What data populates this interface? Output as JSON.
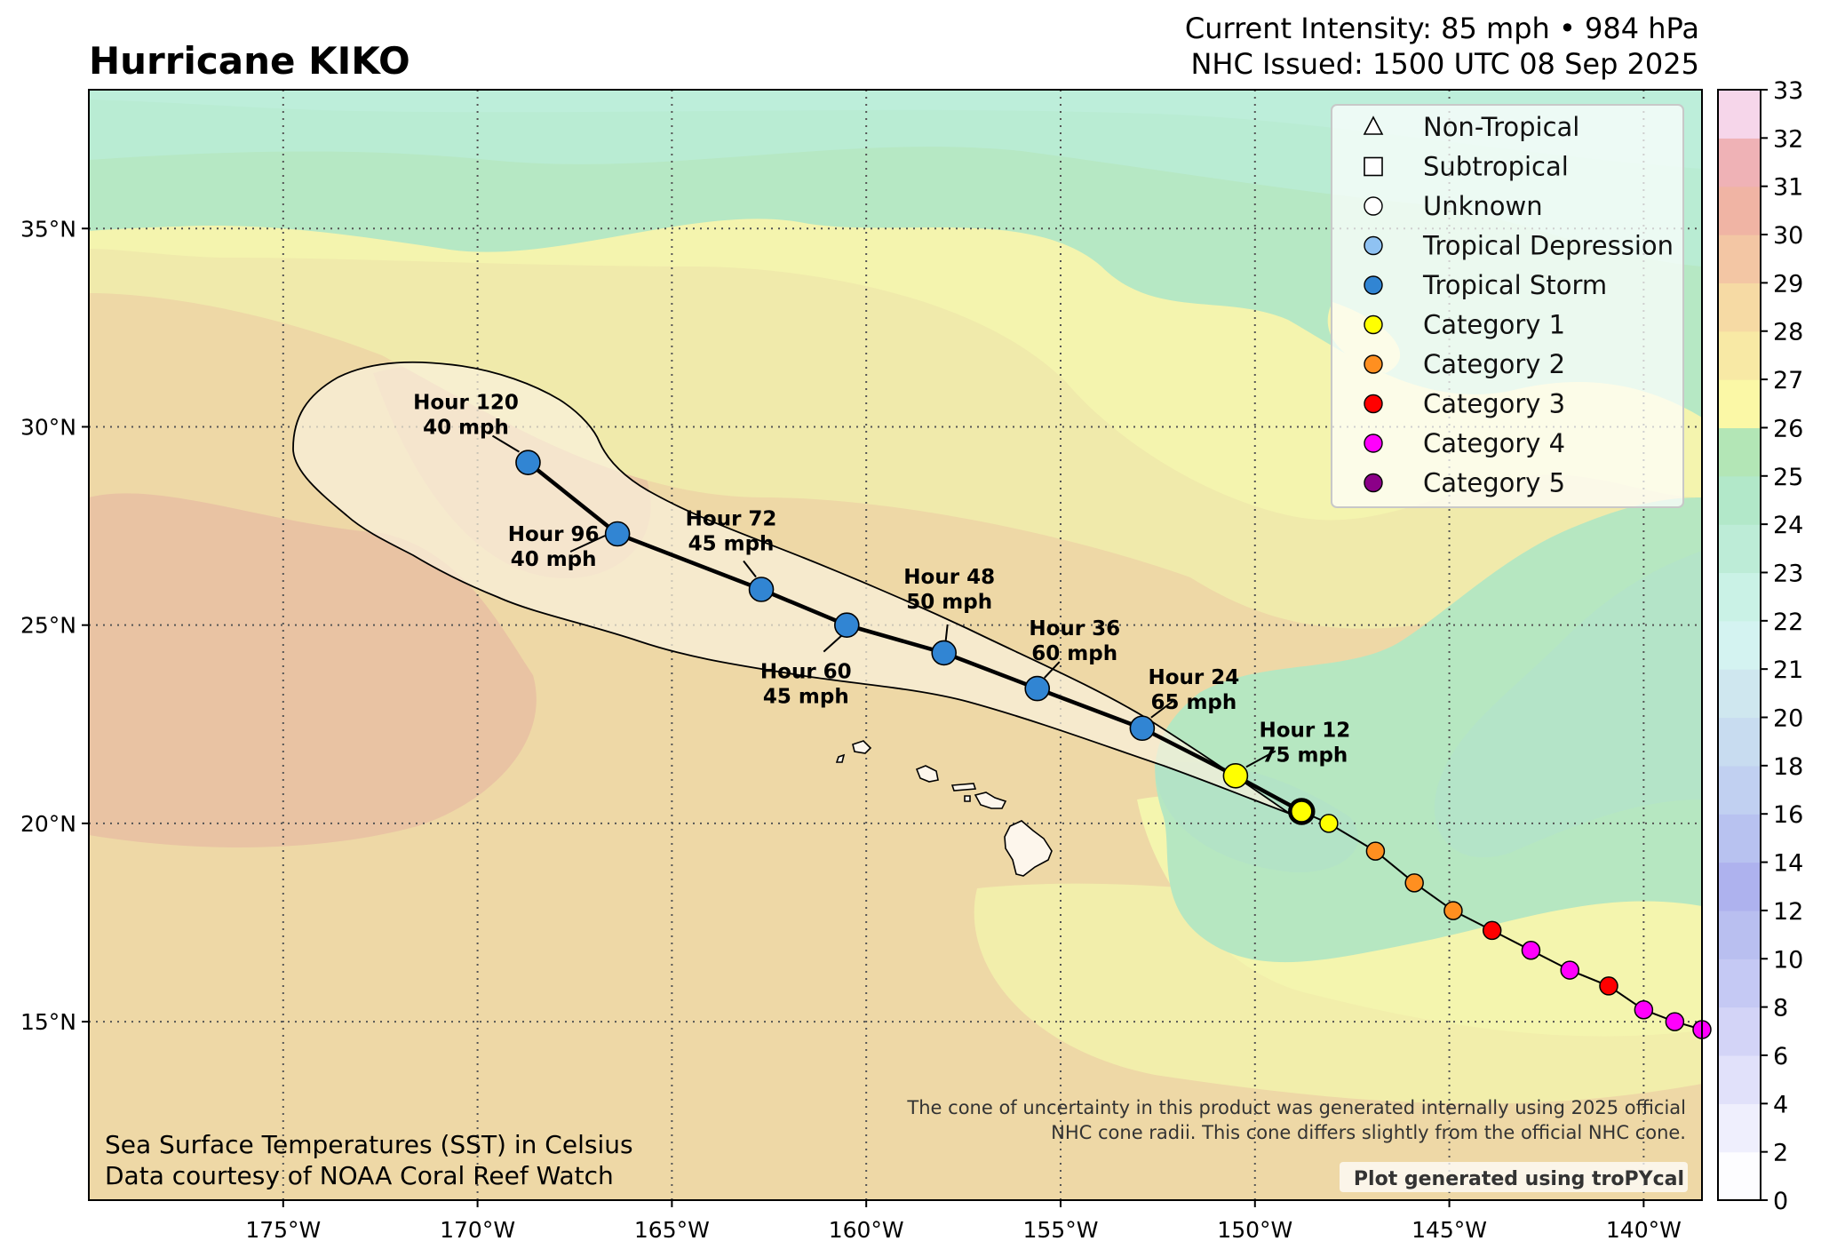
{
  "title": "Hurricane KIKO",
  "header": {
    "intensity": "Current Intensity: 85 mph • 984 hPa",
    "issued": "NHC Issued: 1500 UTC 08 Sep 2025"
  },
  "map": {
    "lon_range": [
      -180,
      -138.5
    ],
    "lat_range": [
      10.5,
      38.5
    ],
    "lon_ticks": [
      {
        "value": -175,
        "label": "175°W"
      },
      {
        "value": -170,
        "label": "170°W"
      },
      {
        "value": -165,
        "label": "165°W"
      },
      {
        "value": -160,
        "label": "160°W"
      },
      {
        "value": -155,
        "label": "155°W"
      },
      {
        "value": -150,
        "label": "150°W"
      },
      {
        "value": -145,
        "label": "145°W"
      },
      {
        "value": -140,
        "label": "140°W"
      }
    ],
    "lat_ticks": [
      {
        "value": 15,
        "label": "15°N"
      },
      {
        "value": 20,
        "label": "20°N"
      },
      {
        "value": 25,
        "label": "25°N"
      },
      {
        "value": 30,
        "label": "30°N"
      },
      {
        "value": 35,
        "label": "35°N"
      }
    ]
  },
  "past_track": [
    {
      "lon": -138.5,
      "lat": 14.8,
      "cat": "cat4"
    },
    {
      "lon": -139.2,
      "lat": 15.0,
      "cat": "cat4"
    },
    {
      "lon": -140.0,
      "lat": 15.3,
      "cat": "cat4"
    },
    {
      "lon": -140.9,
      "lat": 15.9,
      "cat": "cat3"
    },
    {
      "lon": -141.9,
      "lat": 16.3,
      "cat": "cat4"
    },
    {
      "lon": -142.9,
      "lat": 16.8,
      "cat": "cat4"
    },
    {
      "lon": -143.9,
      "lat": 17.3,
      "cat": "cat3"
    },
    {
      "lon": -144.9,
      "lat": 17.8,
      "cat": "cat2"
    },
    {
      "lon": -145.9,
      "lat": 18.5,
      "cat": "cat2"
    },
    {
      "lon": -146.9,
      "lat": 19.3,
      "cat": "cat2"
    },
    {
      "lon": -148.1,
      "lat": 20.0,
      "cat": "cat1"
    }
  ],
  "current_position": {
    "lon": -148.8,
    "lat": 20.3,
    "cat": "cat1"
  },
  "forecast": [
    {
      "hour_label": "Hour 12",
      "wind": "75 mph",
      "lon": -150.5,
      "lat": 21.2,
      "cat": "cat1"
    },
    {
      "hour_label": "Hour 24",
      "wind": "65 mph",
      "lon": -152.9,
      "lat": 22.4,
      "cat": "ts"
    },
    {
      "hour_label": "Hour 36",
      "wind": "60 mph",
      "lon": -155.6,
      "lat": 23.4,
      "cat": "ts"
    },
    {
      "hour_label": "Hour 48",
      "wind": "50 mph",
      "lon": -158.0,
      "lat": 24.3,
      "cat": "ts"
    },
    {
      "hour_label": "Hour 60",
      "wind": "45 mph",
      "lon": -160.5,
      "lat": 25.0,
      "cat": "ts"
    },
    {
      "hour_label": "Hour 72",
      "wind": "45 mph",
      "lon": -162.7,
      "lat": 25.9,
      "cat": "ts"
    },
    {
      "hour_label": "Hour 96",
      "wind": "40 mph",
      "lon": -166.4,
      "lat": 27.3,
      "cat": "ts"
    },
    {
      "hour_label": "Hour 120",
      "wind": "40 mph",
      "lon": -168.7,
      "lat": 29.1,
      "cat": "ts"
    }
  ],
  "legend": [
    {
      "label": "Non-Tropical",
      "marker": "triangle",
      "color": "#ffffff"
    },
    {
      "label": "Subtropical",
      "marker": "square",
      "color": "#ffffff"
    },
    {
      "label": "Unknown",
      "marker": "circle",
      "color": "#ffffff"
    },
    {
      "label": "Tropical Depression",
      "marker": "circle",
      "color": "#8fc2f2"
    },
    {
      "label": "Tropical Storm",
      "marker": "circle",
      "color": "#3185d3"
    },
    {
      "label": "Category 1",
      "marker": "circle",
      "color": "#ffff00"
    },
    {
      "label": "Category 2",
      "marker": "circle",
      "color": "#ff8f20"
    },
    {
      "label": "Category 3",
      "marker": "circle",
      "color": "#ff0000"
    },
    {
      "label": "Category 4",
      "marker": "circle",
      "color": "#ff00fc"
    },
    {
      "label": "Category 5",
      "marker": "circle",
      "color": "#8b0088"
    }
  ],
  "category_colors": {
    "ts": "#3185d3",
    "cat1": "#ffff00",
    "cat2": "#ff8f20",
    "cat3": "#ff0000",
    "cat4": "#ff00fc",
    "cat5": "#8b0088"
  },
  "colorbar": {
    "ticks": [
      "0",
      "2",
      "4",
      "6",
      "8",
      "10",
      "12",
      "14",
      "16",
      "18",
      "20",
      "21",
      "22",
      "23",
      "24",
      "25",
      "26",
      "27",
      "28",
      "29",
      "30",
      "31",
      "32",
      "33"
    ],
    "colors": [
      "#fdfdff",
      "#efeffd",
      "#e1e1fa",
      "#d3d4f7",
      "#c5c9f4",
      "#b9bff0",
      "#aeb2ee",
      "#b8c2f0",
      "#c1d0f1",
      "#c8dcf0",
      "#cfe7ef",
      "#d4f3f1",
      "#caf2e6",
      "#bdecd7",
      "#b2e8c9",
      "#b3e6b6",
      "#fbf8a6",
      "#f8e9a5",
      "#f6daa4",
      "#f3c6a4",
      "#f0b4a4",
      "#efb2b6",
      "#f6d6ea"
    ]
  },
  "notes": {
    "cone_line1": "The cone of uncertainty in this product was generated internally using 2025 official",
    "cone_line2": "NHC cone radii. This cone differs slightly from the official NHC cone.",
    "generated": "Plot generated using troPYcal",
    "sst_line1": "Sea Surface Temperatures (SST) in Celsius",
    "sst_line2": "Data courtesy of NOAA Coral Reef Watch"
  }
}
